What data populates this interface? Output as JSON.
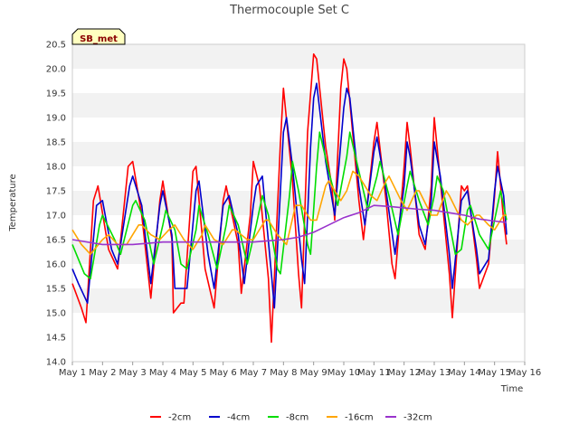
{
  "chart_data": {
    "type": "line",
    "title": "Thermocouple Set C",
    "xlabel": "Time",
    "ylabel": "Temperature",
    "badge": "SB_met",
    "x_ticks": [
      "May 1",
      "May 2",
      "May 3",
      "May 4",
      "May 5",
      "May 6",
      "May 7",
      "May 8",
      "May 9",
      "May 10",
      "May 11",
      "May 12",
      "May 13",
      "May 14",
      "May 15",
      "May 16"
    ],
    "xlim": [
      0,
      15
    ],
    "ylim": [
      14.0,
      20.5
    ],
    "y_ticks": [
      "14.0",
      "14.5",
      "15.0",
      "15.5",
      "16.0",
      "16.5",
      "17.0",
      "17.5",
      "18.0",
      "18.5",
      "19.0",
      "19.5",
      "20.0",
      "20.5"
    ],
    "grid": "horizontal bands",
    "legend_position": "bottom",
    "series": [
      {
        "name": "-2cm",
        "color": "#ff0000",
        "points": [
          [
            0.0,
            15.6
          ],
          [
            0.3,
            15.1
          ],
          [
            0.45,
            14.8
          ],
          [
            0.7,
            17.3
          ],
          [
            0.85,
            17.6
          ],
          [
            1.2,
            16.3
          ],
          [
            1.5,
            15.9
          ],
          [
            1.85,
            18.0
          ],
          [
            2.0,
            18.1
          ],
          [
            2.3,
            17.0
          ],
          [
            2.6,
            15.3
          ],
          [
            2.9,
            17.3
          ],
          [
            3.0,
            17.7
          ],
          [
            3.3,
            16.5
          ],
          [
            3.35,
            15.0
          ],
          [
            3.6,
            15.2
          ],
          [
            3.7,
            15.2
          ],
          [
            4.0,
            17.9
          ],
          [
            4.1,
            18.0
          ],
          [
            4.4,
            15.9
          ],
          [
            4.7,
            15.1
          ],
          [
            5.0,
            17.3
          ],
          [
            5.1,
            17.6
          ],
          [
            5.5,
            16.4
          ],
          [
            5.6,
            15.4
          ],
          [
            5.9,
            17.0
          ],
          [
            6.0,
            18.1
          ],
          [
            6.2,
            17.6
          ],
          [
            6.5,
            15.7
          ],
          [
            6.6,
            14.4
          ],
          [
            6.9,
            18.5
          ],
          [
            7.0,
            19.6
          ],
          [
            7.3,
            17.7
          ],
          [
            7.5,
            15.8
          ],
          [
            7.6,
            15.1
          ],
          [
            7.8,
            18.7
          ],
          [
            8.0,
            20.3
          ],
          [
            8.1,
            20.2
          ],
          [
            8.4,
            18.4
          ],
          [
            8.6,
            17.6
          ],
          [
            8.7,
            16.9
          ],
          [
            8.9,
            19.6
          ],
          [
            9.0,
            20.2
          ],
          [
            9.1,
            20.0
          ],
          [
            9.5,
            17.3
          ],
          [
            9.65,
            16.5
          ],
          [
            10.0,
            18.5
          ],
          [
            10.1,
            18.9
          ],
          [
            10.4,
            17.3
          ],
          [
            10.6,
            16.0
          ],
          [
            10.7,
            15.7
          ],
          [
            11.0,
            18.0
          ],
          [
            11.1,
            18.9
          ],
          [
            11.2,
            18.4
          ],
          [
            11.5,
            16.6
          ],
          [
            11.7,
            16.3
          ],
          [
            11.9,
            17.6
          ],
          [
            12.0,
            19.0
          ],
          [
            12.2,
            17.7
          ],
          [
            12.5,
            15.8
          ],
          [
            12.6,
            14.9
          ],
          [
            12.9,
            17.6
          ],
          [
            13.0,
            17.5
          ],
          [
            13.1,
            17.6
          ],
          [
            13.4,
            16.1
          ],
          [
            13.5,
            15.5
          ],
          [
            13.8,
            16.0
          ],
          [
            14.0,
            17.4
          ],
          [
            14.1,
            18.3
          ],
          [
            14.3,
            16.9
          ],
          [
            14.4,
            16.4
          ]
        ]
      },
      {
        "name": "-4cm",
        "color": "#0000cc",
        "points": [
          [
            0.0,
            15.9
          ],
          [
            0.2,
            15.6
          ],
          [
            0.5,
            15.2
          ],
          [
            0.8,
            17.2
          ],
          [
            1.0,
            17.3
          ],
          [
            1.3,
            16.3
          ],
          [
            1.5,
            16.0
          ],
          [
            1.9,
            17.6
          ],
          [
            2.0,
            17.8
          ],
          [
            2.3,
            17.2
          ],
          [
            2.6,
            15.6
          ],
          [
            2.9,
            17.2
          ],
          [
            3.0,
            17.5
          ],
          [
            3.3,
            16.6
          ],
          [
            3.4,
            15.5
          ],
          [
            3.7,
            15.5
          ],
          [
            3.8,
            15.5
          ],
          [
            4.1,
            17.5
          ],
          [
            4.2,
            17.7
          ],
          [
            4.5,
            16.2
          ],
          [
            4.7,
            15.5
          ],
          [
            5.0,
            17.2
          ],
          [
            5.2,
            17.4
          ],
          [
            5.5,
            16.6
          ],
          [
            5.7,
            15.6
          ],
          [
            6.0,
            17.2
          ],
          [
            6.1,
            17.6
          ],
          [
            6.3,
            17.8
          ],
          [
            6.6,
            15.8
          ],
          [
            6.7,
            15.1
          ],
          [
            7.0,
            18.7
          ],
          [
            7.1,
            19.0
          ],
          [
            7.3,
            18.0
          ],
          [
            7.6,
            16.1
          ],
          [
            7.7,
            15.6
          ],
          [
            7.9,
            18.4
          ],
          [
            8.0,
            19.4
          ],
          [
            8.1,
            19.7
          ],
          [
            8.4,
            18.1
          ],
          [
            8.7,
            17.0
          ],
          [
            9.0,
            19.2
          ],
          [
            9.1,
            19.6
          ],
          [
            9.2,
            19.4
          ],
          [
            9.5,
            17.6
          ],
          [
            9.7,
            16.8
          ],
          [
            10.0,
            18.3
          ],
          [
            10.1,
            18.6
          ],
          [
            10.4,
            17.5
          ],
          [
            10.7,
            16.2
          ],
          [
            11.0,
            17.6
          ],
          [
            11.1,
            18.5
          ],
          [
            11.2,
            18.2
          ],
          [
            11.5,
            16.8
          ],
          [
            11.7,
            16.4
          ],
          [
            11.9,
            17.3
          ],
          [
            12.0,
            18.5
          ],
          [
            12.2,
            17.8
          ],
          [
            12.5,
            16.2
          ],
          [
            12.6,
            15.5
          ],
          [
            12.9,
            17.3
          ],
          [
            13.0,
            17.4
          ],
          [
            13.1,
            17.5
          ],
          [
            13.4,
            16.3
          ],
          [
            13.5,
            15.8
          ],
          [
            13.8,
            16.1
          ],
          [
            14.0,
            17.5
          ],
          [
            14.1,
            18.0
          ],
          [
            14.3,
            17.4
          ],
          [
            14.4,
            16.6
          ]
        ]
      },
      {
        "name": "-8cm",
        "color": "#00dd00",
        "points": [
          [
            0.0,
            16.4
          ],
          [
            0.4,
            15.8
          ],
          [
            0.6,
            15.7
          ],
          [
            0.9,
            16.8
          ],
          [
            1.0,
            17.0
          ],
          [
            1.4,
            16.5
          ],
          [
            1.6,
            16.2
          ],
          [
            2.0,
            17.2
          ],
          [
            2.1,
            17.3
          ],
          [
            2.4,
            16.9
          ],
          [
            2.7,
            16.0
          ],
          [
            3.0,
            16.8
          ],
          [
            3.1,
            17.1
          ],
          [
            3.4,
            16.7
          ],
          [
            3.6,
            16.0
          ],
          [
            3.8,
            15.9
          ],
          [
            4.1,
            16.7
          ],
          [
            4.2,
            17.2
          ],
          [
            4.5,
            16.6
          ],
          [
            4.8,
            15.9
          ],
          [
            5.1,
            16.8
          ],
          [
            5.2,
            17.2
          ],
          [
            5.5,
            16.8
          ],
          [
            5.8,
            16.0
          ],
          [
            6.1,
            16.8
          ],
          [
            6.3,
            17.4
          ],
          [
            6.5,
            17.0
          ],
          [
            6.8,
            15.9
          ],
          [
            6.9,
            15.8
          ],
          [
            7.2,
            17.4
          ],
          [
            7.3,
            18.1
          ],
          [
            7.5,
            17.5
          ],
          [
            7.8,
            16.4
          ],
          [
            7.9,
            16.2
          ],
          [
            8.1,
            18.0
          ],
          [
            8.2,
            18.7
          ],
          [
            8.5,
            17.9
          ],
          [
            8.8,
            17.2
          ],
          [
            9.1,
            18.2
          ],
          [
            9.2,
            18.7
          ],
          [
            9.5,
            17.9
          ],
          [
            9.8,
            17.1
          ],
          [
            10.1,
            17.8
          ],
          [
            10.2,
            18.1
          ],
          [
            10.5,
            17.4
          ],
          [
            10.8,
            16.6
          ],
          [
            11.1,
            17.6
          ],
          [
            11.2,
            17.9
          ],
          [
            11.5,
            17.3
          ],
          [
            11.8,
            16.8
          ],
          [
            12.0,
            17.4
          ],
          [
            12.1,
            17.8
          ],
          [
            12.3,
            17.5
          ],
          [
            12.7,
            16.2
          ],
          [
            12.9,
            16.3
          ],
          [
            13.1,
            17.1
          ],
          [
            13.2,
            17.2
          ],
          [
            13.5,
            16.6
          ],
          [
            13.8,
            16.3
          ],
          [
            14.0,
            16.9
          ],
          [
            14.2,
            17.5
          ],
          [
            14.4,
            16.9
          ]
        ]
      },
      {
        "name": "-16cm",
        "color": "#ffa500",
        "points": [
          [
            0.0,
            16.7
          ],
          [
            0.3,
            16.4
          ],
          [
            0.6,
            16.2
          ],
          [
            1.0,
            16.5
          ],
          [
            1.2,
            16.6
          ],
          [
            1.5,
            16.4
          ],
          [
            1.8,
            16.4
          ],
          [
            2.2,
            16.8
          ],
          [
            2.3,
            16.8
          ],
          [
            2.6,
            16.6
          ],
          [
            2.9,
            16.5
          ],
          [
            3.2,
            16.7
          ],
          [
            3.4,
            16.8
          ],
          [
            3.7,
            16.5
          ],
          [
            4.0,
            16.3
          ],
          [
            4.3,
            16.6
          ],
          [
            4.4,
            16.8
          ],
          [
            4.7,
            16.5
          ],
          [
            5.0,
            16.4
          ],
          [
            5.3,
            16.7
          ],
          [
            5.4,
            16.7
          ],
          [
            5.8,
            16.5
          ],
          [
            6.0,
            16.5
          ],
          [
            6.4,
            16.9
          ],
          [
            6.5,
            16.9
          ],
          [
            6.8,
            16.6
          ],
          [
            7.1,
            16.4
          ],
          [
            7.4,
            17.2
          ],
          [
            7.6,
            17.2
          ],
          [
            7.9,
            16.9
          ],
          [
            8.1,
            16.9
          ],
          [
            8.4,
            17.6
          ],
          [
            8.5,
            17.7
          ],
          [
            8.9,
            17.3
          ],
          [
            9.1,
            17.5
          ],
          [
            9.3,
            17.9
          ],
          [
            9.5,
            17.8
          ],
          [
            9.9,
            17.4
          ],
          [
            10.1,
            17.3
          ],
          [
            10.4,
            17.7
          ],
          [
            10.5,
            17.8
          ],
          [
            10.9,
            17.3
          ],
          [
            11.1,
            17.1
          ],
          [
            11.4,
            17.5
          ],
          [
            11.5,
            17.5
          ],
          [
            11.9,
            17.0
          ],
          [
            12.1,
            17.0
          ],
          [
            12.4,
            17.5
          ],
          [
            12.5,
            17.4
          ],
          [
            12.9,
            16.9
          ],
          [
            13.1,
            16.8
          ],
          [
            13.4,
            17.0
          ],
          [
            13.5,
            17.0
          ],
          [
            13.8,
            16.8
          ],
          [
            14.0,
            16.7
          ],
          [
            14.3,
            17.0
          ],
          [
            14.4,
            17.0
          ]
        ]
      },
      {
        "name": "-32cm",
        "color": "#9933cc",
        "points": [
          [
            0.0,
            16.5
          ],
          [
            1.0,
            16.4
          ],
          [
            2.0,
            16.4
          ],
          [
            3.0,
            16.45
          ],
          [
            4.0,
            16.45
          ],
          [
            5.0,
            16.45
          ],
          [
            6.0,
            16.45
          ],
          [
            7.0,
            16.5
          ],
          [
            7.5,
            16.55
          ],
          [
            8.0,
            16.65
          ],
          [
            8.5,
            16.8
          ],
          [
            9.0,
            16.95
          ],
          [
            9.5,
            17.05
          ],
          [
            10.0,
            17.2
          ],
          [
            10.5,
            17.18
          ],
          [
            11.0,
            17.15
          ],
          [
            11.5,
            17.12
          ],
          [
            12.0,
            17.1
          ],
          [
            12.5,
            17.05
          ],
          [
            13.0,
            17.0
          ],
          [
            13.5,
            16.92
          ],
          [
            14.0,
            16.88
          ],
          [
            14.4,
            16.85
          ]
        ]
      }
    ]
  }
}
